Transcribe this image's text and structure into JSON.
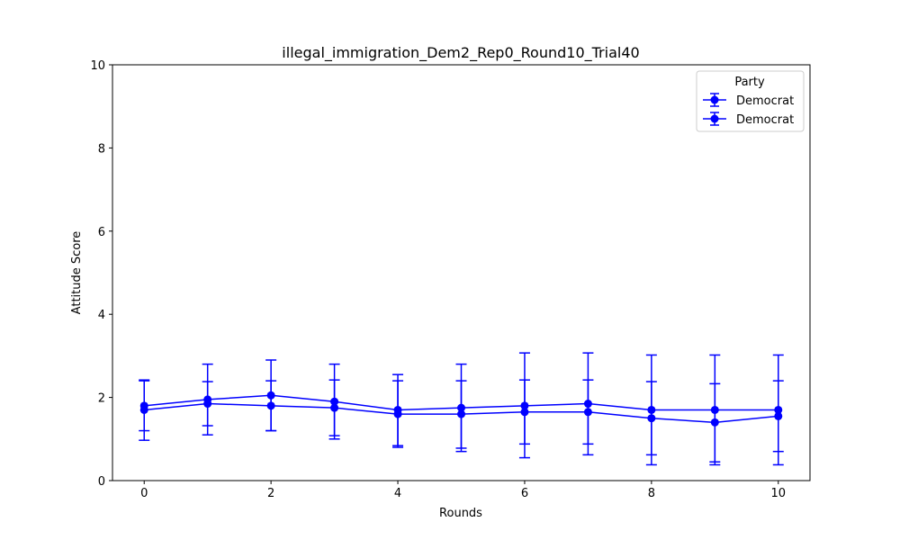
{
  "chart_data": {
    "type": "line",
    "title": "illegal_immigration_Dem2_Rep0_Round10_Trial40",
    "xlabel": "Rounds",
    "ylabel": "Attitude Score",
    "xlim": [
      -0.5,
      10.5
    ],
    "ylim": [
      0,
      10
    ],
    "x_ticks": [
      "0",
      "2",
      "4",
      "6",
      "8",
      "10"
    ],
    "y_ticks": [
      "0",
      "2",
      "4",
      "6",
      "8",
      "10"
    ],
    "grid": false,
    "legend": {
      "title": "Party",
      "position": "top-right"
    },
    "x": [
      0,
      1,
      2,
      3,
      4,
      5,
      6,
      7,
      8,
      9,
      10
    ],
    "series": [
      {
        "name": "Democrat",
        "color": "#0000ff",
        "values": [
          1.8,
          1.95,
          2.05,
          1.9,
          1.7,
          1.75,
          1.8,
          1.85,
          1.7,
          1.7,
          1.7
        ],
        "error_low": [
          1.2,
          1.1,
          1.2,
          1.0,
          0.8,
          0.7,
          0.55,
          0.62,
          0.38,
          0.38,
          0.38
        ],
        "error_high": [
          2.4,
          2.8,
          2.9,
          2.8,
          2.55,
          2.8,
          3.07,
          3.07,
          3.02,
          3.02,
          3.02
        ]
      },
      {
        "name": "Democrat",
        "color": "#0000ff",
        "values": [
          1.7,
          1.85,
          1.8,
          1.75,
          1.6,
          1.6,
          1.65,
          1.65,
          1.5,
          1.4,
          1.55
        ],
        "error_low": [
          0.97,
          1.32,
          1.2,
          1.08,
          0.84,
          0.78,
          0.88,
          0.88,
          0.62,
          0.45,
          0.7
        ],
        "error_high": [
          2.42,
          2.38,
          2.4,
          2.42,
          2.4,
          2.4,
          2.42,
          2.42,
          2.38,
          2.33,
          2.4
        ]
      }
    ]
  }
}
